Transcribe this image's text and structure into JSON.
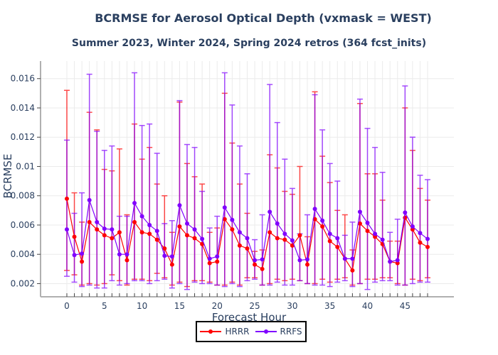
{
  "title": "BCRMSE for Aerosol Optical Depth (vxmask = WEST)",
  "subtitle": "Summer 2023, Winter 2024, Spring 2024 retros (364 fcst_inits)",
  "chart_data": {
    "type": "line",
    "title": "BCRMSE for Aerosol Optical Depth (vxmask = WEST)",
    "subtitle": "Summer 2023, Winter 2024, Spring 2024 retros (364 fcst_inits)",
    "xlabel": "Forecast Hour",
    "ylabel": "BCRMSE",
    "xlim": [
      -3.5,
      51.5
    ],
    "ylim": [
      0.0011,
      0.0172
    ],
    "grid": true,
    "legend_position": "bottom-center",
    "x_ticks": [
      "0",
      "5",
      "10",
      "15",
      "20",
      "25",
      "30",
      "35",
      "40",
      "45"
    ],
    "x_tick_values": [
      0,
      5,
      10,
      15,
      20,
      25,
      30,
      35,
      40,
      45
    ],
    "y_ticks": [
      "0.002",
      "0.004",
      "0.006",
      "0.008",
      "0.01",
      "0.012",
      "0.014",
      "0.016"
    ],
    "y_tick_values": [
      0.002,
      0.004,
      0.006,
      0.008,
      0.01,
      0.012,
      0.014,
      0.016
    ],
    "x": [
      0,
      1,
      2,
      3,
      4,
      5,
      6,
      7,
      8,
      9,
      10,
      11,
      12,
      13,
      14,
      15,
      16,
      17,
      18,
      19,
      20,
      21,
      22,
      23,
      24,
      25,
      26,
      27,
      28,
      29,
      30,
      31,
      32,
      33,
      34,
      35,
      36,
      37,
      38,
      39,
      40,
      41,
      42,
      43,
      44,
      45,
      46,
      47,
      48
    ],
    "series": [
      {
        "name": "HRRR",
        "color": "#ff0000",
        "values": [
          0.0078,
          0.0052,
          0.0035,
          0.0062,
          0.0057,
          0.0053,
          0.0051,
          0.0055,
          0.0036,
          0.0062,
          0.0055,
          0.0054,
          0.005,
          0.0044,
          0.0033,
          0.0059,
          0.0053,
          0.0051,
          0.0047,
          0.0034,
          0.0035,
          0.0064,
          0.0057,
          0.0046,
          0.0044,
          0.0033,
          0.003,
          0.0055,
          0.0051,
          0.005,
          0.0046,
          0.0053,
          0.0033,
          0.0064,
          0.0059,
          0.0049,
          0.0045,
          0.0037,
          0.0029,
          0.0061,
          0.0056,
          0.0052,
          0.0047,
          0.0035,
          0.0034,
          0.0065,
          0.0057,
          0.0048,
          0.0045
        ],
        "upper": [
          0.0152,
          0.0082,
          0.0062,
          0.0137,
          0.0125,
          0.0098,
          0.0097,
          0.0112,
          0.0067,
          0.0129,
          0.0105,
          0.0113,
          0.0088,
          0.008,
          0.0055,
          0.0144,
          0.0102,
          0.0093,
          0.0088,
          0.0055,
          0.0058,
          0.015,
          0.0116,
          0.0088,
          0.0068,
          0.0042,
          0.0043,
          0.0108,
          0.0099,
          0.0083,
          0.0081,
          0.01,
          0.0052,
          0.0151,
          0.0107,
          0.0089,
          0.007,
          0.0067,
          0.0043,
          0.0143,
          0.0095,
          0.0095,
          0.0077,
          0.0049,
          0.0049,
          0.014,
          0.0111,
          0.0085,
          0.0077
        ],
        "lower": [
          0.0029,
          0.0026,
          0.0019,
          0.002,
          0.0019,
          0.002,
          0.0026,
          0.0022,
          0.0019,
          0.0023,
          0.0023,
          0.0022,
          0.0027,
          0.0024,
          0.0019,
          0.0021,
          0.0018,
          0.0022,
          0.0022,
          0.0021,
          0.0019,
          0.0019,
          0.0021,
          0.0019,
          0.0024,
          0.0024,
          0.0019,
          0.002,
          0.0023,
          0.0022,
          0.0023,
          0.0022,
          0.002,
          0.002,
          0.0023,
          0.0021,
          0.0023,
          0.0024,
          0.0019,
          0.002,
          0.0023,
          0.0023,
          0.0024,
          0.0024,
          0.002,
          0.0019,
          0.0023,
          0.0022,
          0.0024
        ]
      },
      {
        "name": "RRFS",
        "color": "#8000ff",
        "values": [
          0.0057,
          0.00395,
          0.00405,
          0.0077,
          0.0062,
          0.00575,
          0.0057,
          0.004,
          0.004,
          0.0075,
          0.0066,
          0.006,
          0.0056,
          0.0039,
          0.00385,
          0.00735,
          0.0061,
          0.0057,
          0.00505,
          0.0037,
          0.00385,
          0.0072,
          0.00635,
          0.0055,
          0.0051,
          0.0036,
          0.00365,
          0.0069,
          0.0061,
          0.0054,
          0.00495,
          0.0036,
          0.00365,
          0.0071,
          0.0063,
          0.0054,
          0.0051,
          0.0037,
          0.0037,
          0.0069,
          0.00615,
          0.0054,
          0.005,
          0.0035,
          0.0036,
          0.00685,
          0.0059,
          0.00545,
          0.00505
        ],
        "upper": [
          0.0118,
          0.0068,
          0.0082,
          0.0163,
          0.0124,
          0.0111,
          0.0114,
          0.0066,
          0.0066,
          0.0164,
          0.0128,
          0.0129,
          0.0109,
          0.0061,
          0.0063,
          0.0145,
          0.0115,
          0.0113,
          0.0083,
          0.0058,
          0.0066,
          0.0164,
          0.0142,
          0.0114,
          0.0095,
          0.005,
          0.0067,
          0.0156,
          0.013,
          0.0105,
          0.0085,
          0.0054,
          0.0067,
          0.0149,
          0.0125,
          0.0102,
          0.009,
          0.0053,
          0.0062,
          0.0146,
          0.0126,
          0.0113,
          0.0096,
          0.0055,
          0.0064,
          0.0155,
          0.012,
          0.0094,
          0.0091
        ],
        "lower": [
          0.0025,
          0.0021,
          0.0018,
          0.0019,
          0.0017,
          0.0017,
          0.0022,
          0.0019,
          0.002,
          0.0022,
          0.0022,
          0.002,
          0.0022,
          0.0023,
          0.0017,
          0.002,
          0.0016,
          0.0021,
          0.002,
          0.002,
          0.0019,
          0.0018,
          0.002,
          0.0018,
          0.0022,
          0.0023,
          0.0019,
          0.0019,
          0.0021,
          0.0019,
          0.0019,
          0.0022,
          0.002,
          0.0019,
          0.0019,
          0.0018,
          0.0021,
          0.0022,
          0.0018,
          0.002,
          0.0016,
          0.0021,
          0.0022,
          0.0022,
          0.0019,
          0.0019,
          0.002,
          0.0021,
          0.0021
        ]
      }
    ]
  },
  "legend": {
    "items": [
      {
        "label": "HRRR",
        "color": "#ff0000"
      },
      {
        "label": "RRFS",
        "color": "#8000ff"
      }
    ]
  }
}
